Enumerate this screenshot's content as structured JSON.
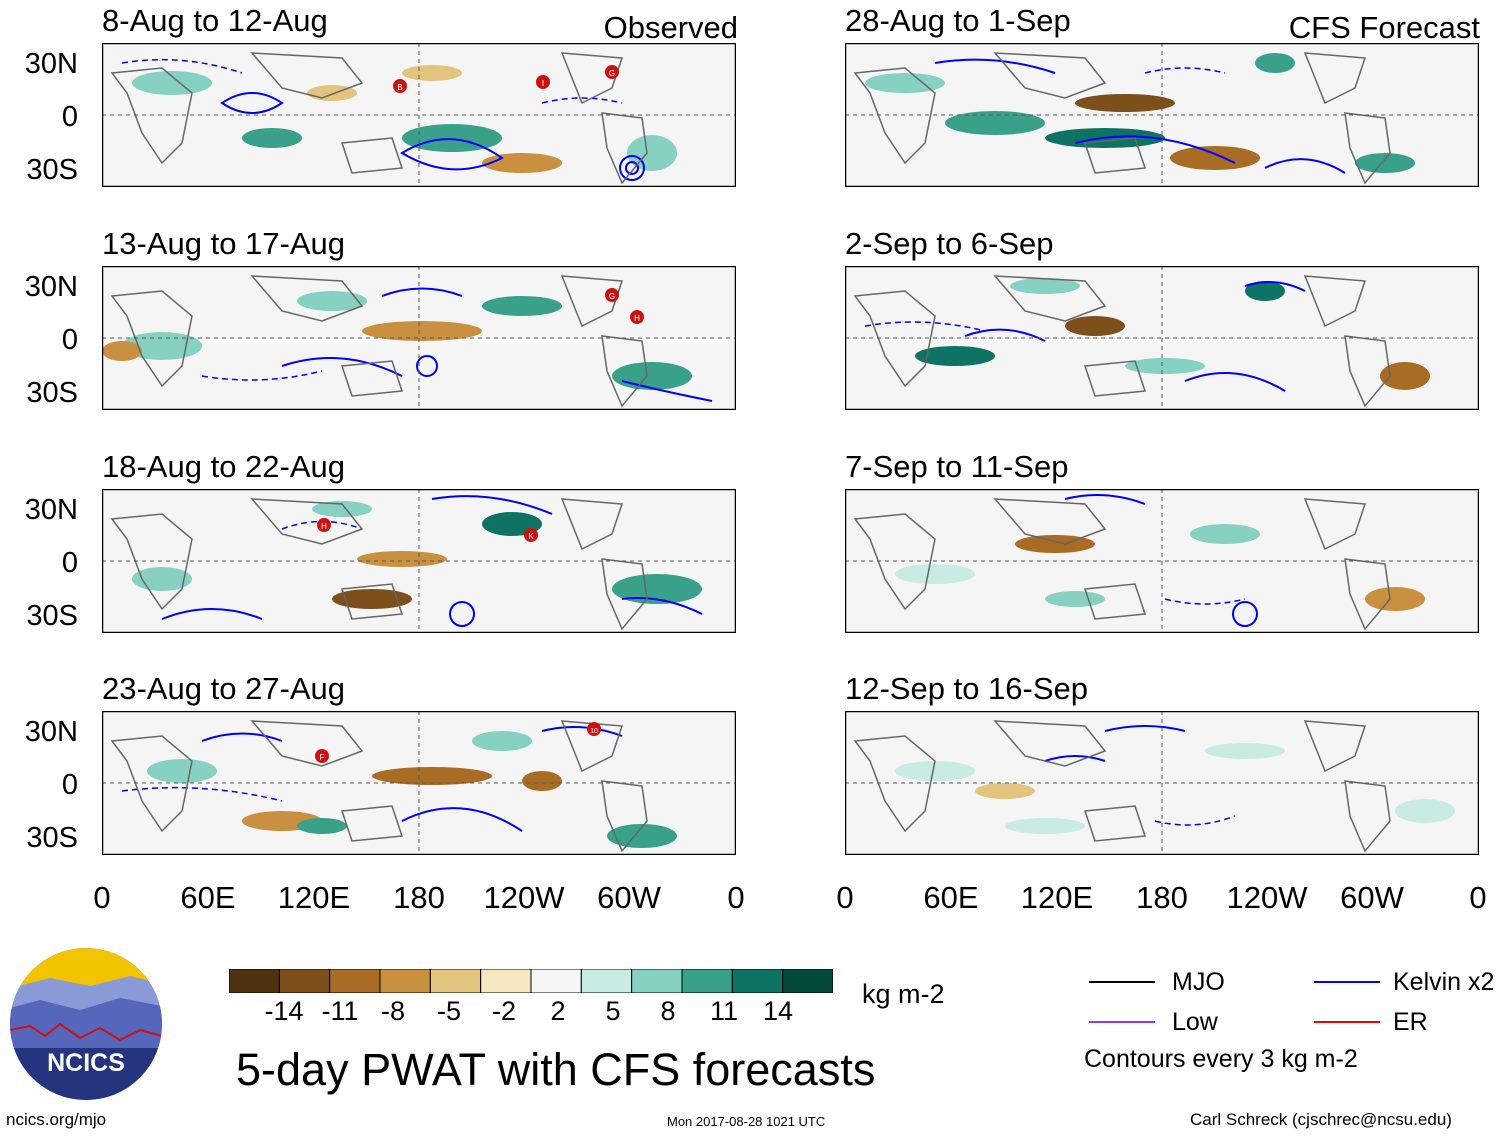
{
  "left_column": {
    "label": "Observed",
    "panels": [
      {
        "title": "8-Aug to 12-Aug",
        "storms": [
          "B",
          "I",
          "G"
        ]
      },
      {
        "title": "13-Aug to 17-Aug",
        "storms": [
          "G",
          "H"
        ]
      },
      {
        "title": "18-Aug to 22-Aug",
        "storms": [
          "H",
          "K"
        ]
      },
      {
        "title": "23-Aug to 27-Aug",
        "storms": [
          "F",
          "10"
        ]
      }
    ]
  },
  "right_column": {
    "label": "CFS Forecast",
    "panels": [
      {
        "title": "28-Aug to 1-Sep"
      },
      {
        "title": "2-Sep to 6-Sep"
      },
      {
        "title": "7-Sep to 11-Sep"
      },
      {
        "title": "12-Sep to 16-Sep"
      }
    ]
  },
  "lat_labels": [
    "30N",
    "0",
    "30S"
  ],
  "lon_labels": [
    "0",
    "60E",
    "120E",
    "180",
    "120W",
    "60W",
    "0"
  ],
  "colorbar": {
    "ticks": [
      "-14",
      "-11",
      "-8",
      "-5",
      "-2",
      "2",
      "5",
      "8",
      "11",
      "14"
    ],
    "units": "kg m-2",
    "colors": [
      "#4f3212",
      "#7d4f1a",
      "#a86c24",
      "#c9913f",
      "#e2c47f",
      "#f6e7c0",
      "#f6f6f6",
      "#c8ebe3",
      "#86d1c2",
      "#39a08a",
      "#0f7363",
      "#034a3c"
    ]
  },
  "legend": {
    "items": [
      {
        "label": "MJO",
        "color": "#000000"
      },
      {
        "label": "Kelvin x2",
        "color": "#0000ff"
      },
      {
        "label": "Low",
        "color": "#9933ff"
      },
      {
        "label": "ER",
        "color": "#ff0000"
      }
    ],
    "note": "Contours every 3 kg m-2"
  },
  "logo": {
    "text": "NCICS"
  },
  "title": "5-day PWAT with CFS forecasts",
  "footer": {
    "left": "ncics.org/mjo",
    "center": "Mon 2017-08-28 1021 UTC",
    "right": "Carl Schreck (cjschrec@ncsu.edu)"
  }
}
